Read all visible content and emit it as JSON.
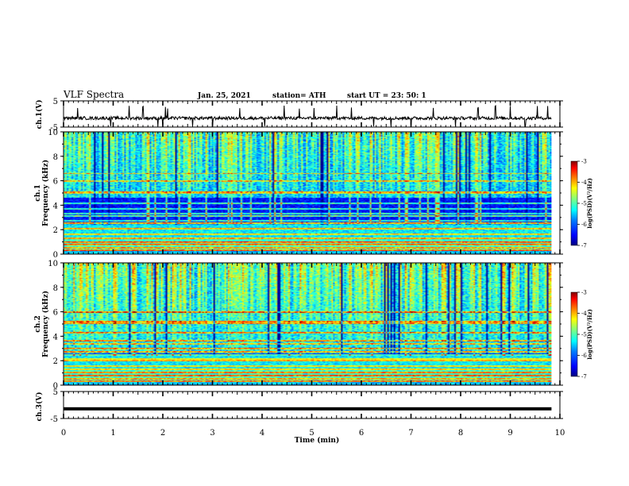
{
  "header": {
    "title": "VLF Spectra",
    "date": "Jan. 25, 2021",
    "station": "station= ATH",
    "start": "start  UT  =   23: 50: 1"
  },
  "x_axis": {
    "label": "Time (min)",
    "range": [
      0,
      10
    ],
    "ticks": [
      "0",
      "1",
      "2",
      "3",
      "4",
      "5",
      "6",
      "7",
      "8",
      "9",
      "10"
    ],
    "data_end": 9.83
  },
  "chart_data": [
    {
      "type": "line",
      "name": "ch1-waveform",
      "ylabel": "ch.1(V)",
      "ylim": [
        -5,
        5
      ],
      "yticks": [
        "5",
        "-5"
      ],
      "baseline": -1.6,
      "noise_amplitude": 0.6,
      "spike_times_min": [
        0.28,
        0.95,
        1.32,
        1.6,
        1.9,
        2.0,
        2.05,
        2.1,
        2.6,
        3.0,
        3.55,
        4.05,
        4.45,
        4.75,
        5.05,
        5.5,
        5.8,
        6.25,
        6.6,
        7.0,
        7.45,
        7.9,
        8.35,
        8.7,
        9.0,
        9.3,
        9.55,
        9.75
      ]
    },
    {
      "type": "heatmap",
      "name": "ch1-spectrogram",
      "ylabel": "ch.1\nFrequency (kHz)",
      "ylim": [
        0,
        10
      ],
      "yticks": [
        "0",
        "2",
        "4",
        "6",
        "8",
        "10"
      ],
      "colorbar": {
        "label": "log(PSD)(V²/Hz)",
        "range": [
          -7,
          -3
        ],
        "ticks": [
          "-3",
          "-4",
          "-5",
          "-6",
          "-7"
        ]
      },
      "lines_khz": [
        0.3,
        0.5,
        0.75,
        0.95,
        1.3,
        1.6,
        2.05,
        2.5,
        2.7,
        3.1,
        3.3,
        3.7,
        4.15,
        5.0,
        5.1,
        6.0,
        6.6
      ],
      "dark_band_khz": [
        2.6,
        4.6
      ]
    },
    {
      "type": "heatmap",
      "name": "ch2-spectrogram",
      "ylabel": "ch.2\nFrequency (kHz)",
      "ylim": [
        0,
        10
      ],
      "yticks": [
        "0",
        "2",
        "4",
        "6",
        "8",
        "10"
      ],
      "colorbar": {
        "label": "log(PSD)(V²/Hz)",
        "range": [
          -7,
          -3
        ],
        "ticks": [
          "-3",
          "-4",
          "-5",
          "-6",
          "-7"
        ]
      },
      "lines_khz": [
        0.3,
        0.5,
        0.75,
        1.0,
        1.25,
        1.55,
        2.0,
        2.15,
        2.45,
        2.7,
        3.0,
        3.35,
        3.65,
        4.3,
        5.05,
        5.2,
        6.0
      ],
      "dark_band_khz": [
        2.3,
        2.6
      ]
    },
    {
      "type": "line",
      "name": "ch3-waveform",
      "ylabel": "ch.3(V)",
      "ylim": [
        -5,
        5
      ],
      "yticks": [
        "5",
        "-5"
      ],
      "baseline": -1.4,
      "noise_amplitude": 0.0
    }
  ],
  "colors": {
    "scale": [
      "#000080",
      "#0000ff",
      "#0080ff",
      "#00ffff",
      "#80ff80",
      "#ffff00",
      "#ff8000",
      "#ff0000",
      "#800000"
    ]
  }
}
